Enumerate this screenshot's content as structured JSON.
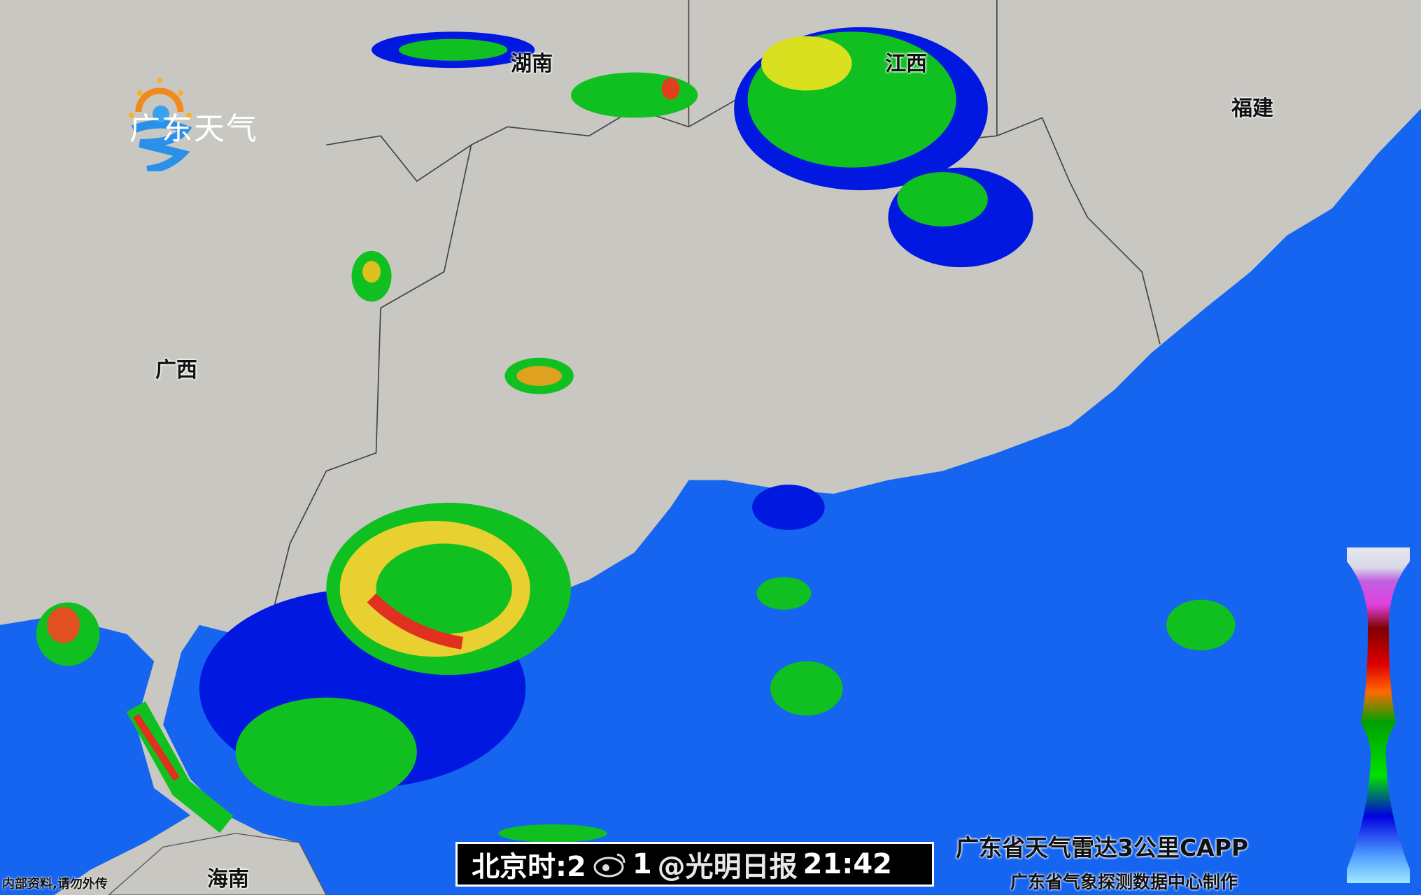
{
  "logo": {
    "text": "广东天气"
  },
  "regions": {
    "hunan": "湖南",
    "jiangxi": "江西",
    "fujian": "福建",
    "guangxi": "广西",
    "hainan": "海南"
  },
  "footer": {
    "time_prefix": "北京时:2",
    "time_mid": "1",
    "time": "21:42",
    "watermark": "@光明日报",
    "product": "广东省天气雷达3公里CAPP",
    "maker": "广东省气象探测数据中心制作",
    "note": "内部资料,请勿外传"
  },
  "colors": {
    "sea": "#1565f0",
    "land": "#c9c7c2",
    "legend": [
      "#d8d8e8",
      "#c060e0",
      "#e040e0",
      "#800000",
      "#e00000",
      "#ff6a00",
      "#00a000",
      "#00e000",
      "#0000e0",
      "#50a0ff",
      "#a0e8ff"
    ]
  }
}
